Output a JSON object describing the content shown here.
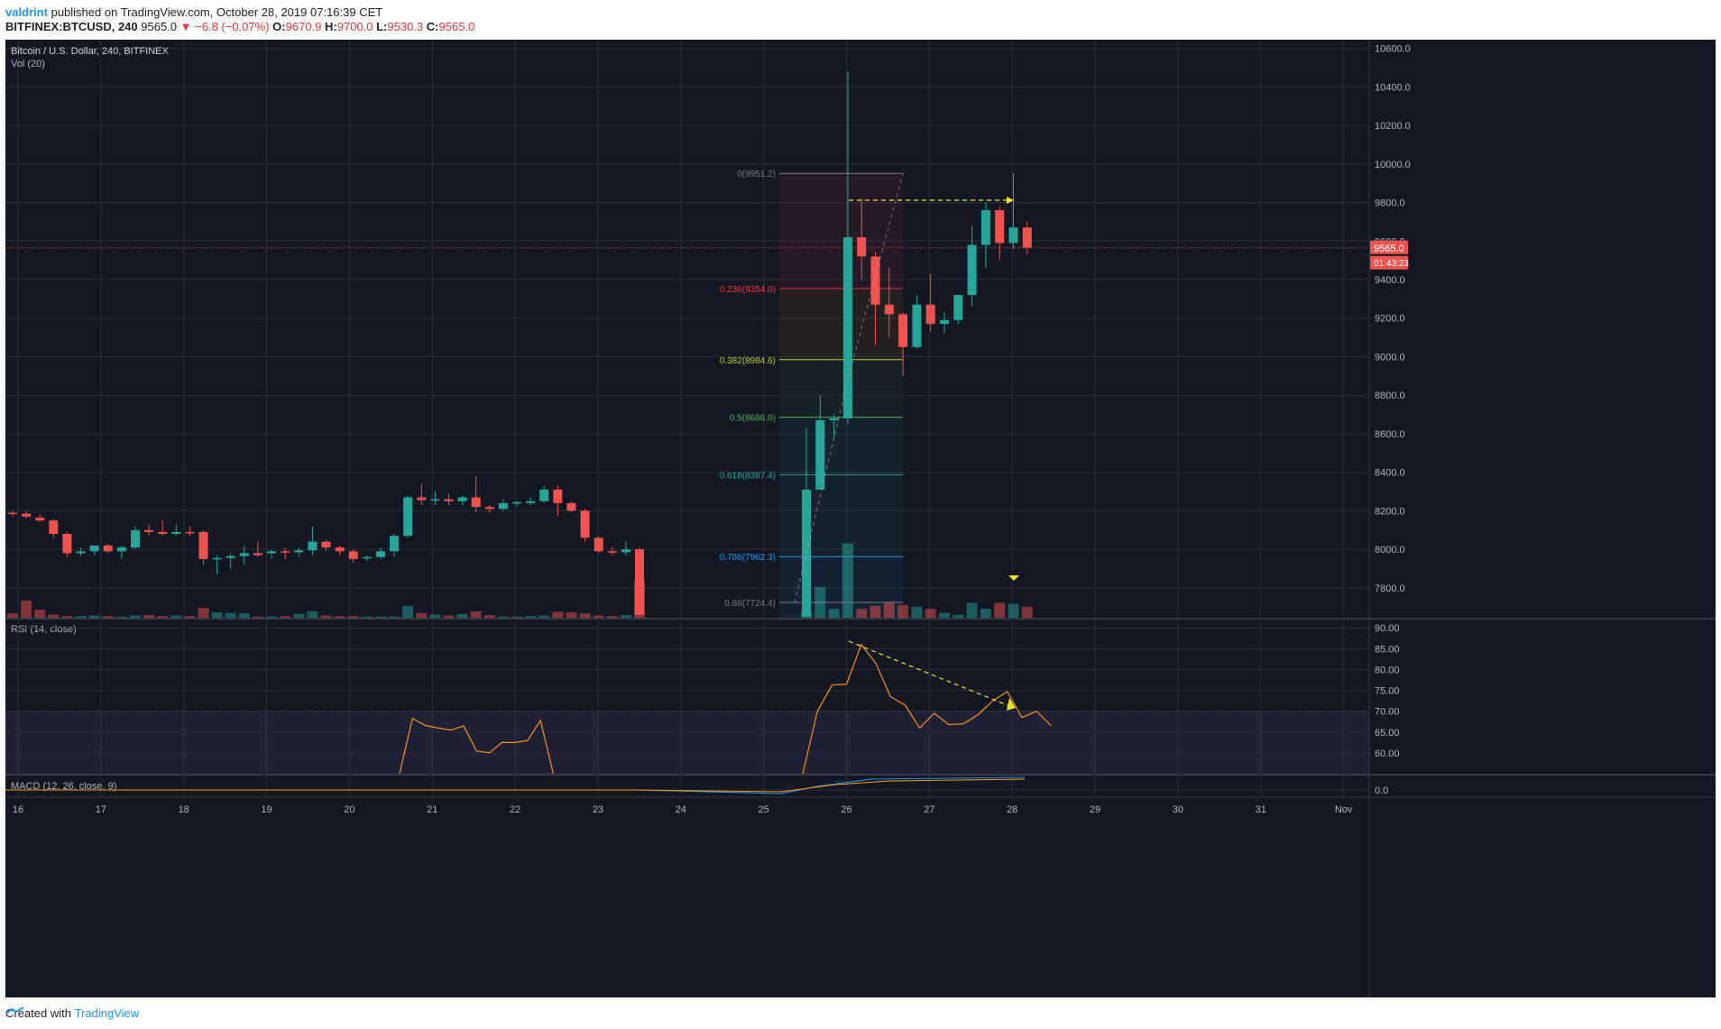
{
  "header": {
    "author": "valdrint",
    "published_text": "published on TradingView.com, October 28, 2019 07:16:39 CET",
    "symbol_line": "BITFINEX:BTCUSD, 240",
    "last": "9565.0",
    "change": "▼ −6.8 (−0.07%)",
    "o_label": "O:",
    "o_value": "9670.9",
    "h_label": "H:",
    "h_value": "9700.0",
    "l_label": "L:",
    "l_value": "9530.3",
    "c_label": "C:",
    "c_value": "9565.0"
  },
  "legend": {
    "main": "Bitcoin / U.S. Dollar, 240, BITFINEX",
    "vol": "Vol (20)",
    "rsi": "RSI (14, close)",
    "macd": "MACD (12, 26, close, 9)"
  },
  "price_badge": "9565.0",
  "countdown_badge": "01:43:23",
  "footer": {
    "created_with": "Created with",
    "brand": "TradingView"
  },
  "colors": {
    "background": "#131722",
    "up": "#26a69a",
    "down": "#ef5350",
    "rsi": "#f7931a",
    "macd_line": "#2196f3",
    "signal_line": "#ff9800",
    "trend_arrow": "#f0e130"
  },
  "chart_data": {
    "type": "candlestick",
    "title": "Bitcoin / U.S. Dollar, 240, BITFINEX",
    "x_ticks": [
      "16",
      "17",
      "18",
      "19",
      "20",
      "21",
      "22",
      "23",
      "24",
      "25",
      "26",
      "27",
      "28",
      "29",
      "30",
      "31",
      "Nov"
    ],
    "y_ticks": [
      "7800.0",
      "8000.0",
      "8200.0",
      "8400.0",
      "8600.0",
      "8800.0",
      "9000.0",
      "9200.0",
      "9400.0",
      "9600.0",
      "9800.0",
      "10000.0",
      "10200.0",
      "10400.0",
      "10600.0"
    ],
    "ylim": [
      7645,
      10645
    ],
    "fibonacci": [
      {
        "label": "0(9951.2)",
        "value": 9951.2,
        "color": "#787b86"
      },
      {
        "label": "0.236(9354.0)",
        "value": 9354.0,
        "color": "#f23645"
      },
      {
        "label": "0.382(8984.6)",
        "value": 8984.6,
        "color": "#c0ca33"
      },
      {
        "label": "0.5(8686.0)",
        "value": 8686.0,
        "color": "#4caf50"
      },
      {
        "label": "0.618(8387.4)",
        "value": 8387.4,
        "color": "#26a69a"
      },
      {
        "label": "0.786(7962.3)",
        "value": 7962.3,
        "color": "#2196f3"
      },
      {
        "label": "0.88(7724.4)",
        "value": 7724.4,
        "color": "#787b86"
      }
    ],
    "candles": [
      [
        8190,
        8200,
        8170,
        8185
      ],
      [
        8185,
        8200,
        8160,
        8170
      ],
      [
        8165,
        8180,
        8140,
        8150
      ],
      [
        8150,
        8160,
        8060,
        8080
      ],
      [
        8080,
        8090,
        7960,
        7980
      ],
      [
        7980,
        8010,
        7965,
        7990
      ],
      [
        7990,
        8020,
        7970,
        8020
      ],
      [
        8020,
        8030,
        7980,
        7990
      ],
      [
        7990,
        8020,
        7950,
        8010
      ],
      [
        8010,
        8120,
        8000,
        8100
      ],
      [
        8100,
        8130,
        8070,
        8090
      ],
      [
        8090,
        8150,
        8070,
        8080
      ],
      [
        8080,
        8130,
        8070,
        8090
      ],
      [
        8090,
        8120,
        8070,
        8085
      ],
      [
        8090,
        8100,
        7920,
        7950
      ],
      [
        7950,
        7970,
        7870,
        7955
      ],
      [
        7955,
        7980,
        7900,
        7965
      ],
      [
        7965,
        8020,
        7920,
        7980
      ],
      [
        7980,
        8040,
        7960,
        7970
      ],
      [
        7980,
        8000,
        7950,
        7990
      ],
      [
        7990,
        8010,
        7950,
        7985
      ],
      [
        7985,
        8010,
        7960,
        7995
      ],
      [
        7995,
        8120,
        7970,
        8040
      ],
      [
        8040,
        8050,
        7990,
        8010
      ],
      [
        8010,
        8020,
        7970,
        7990
      ],
      [
        7990,
        8000,
        7930,
        7950
      ],
      [
        7955,
        7970,
        7940,
        7960
      ],
      [
        7960,
        8010,
        7950,
        7990
      ],
      [
        7990,
        8080,
        7960,
        8070
      ],
      [
        8070,
        8280,
        8060,
        8270
      ],
      [
        8270,
        8340,
        8230,
        8255
      ],
      [
        8255,
        8300,
        8230,
        8260
      ],
      [
        8260,
        8290,
        8230,
        8250
      ],
      [
        8250,
        8280,
        8230,
        8270
      ],
      [
        8270,
        8380,
        8190,
        8220
      ],
      [
        8220,
        8230,
        8190,
        8210
      ],
      [
        8210,
        8260,
        8200,
        8240
      ],
      [
        8240,
        8250,
        8220,
        8245
      ],
      [
        8240,
        8270,
        8230,
        8250
      ],
      [
        8250,
        8330,
        8240,
        8310
      ],
      [
        8310,
        8330,
        8170,
        8240
      ],
      [
        8240,
        8250,
        8190,
        8200
      ],
      [
        8200,
        8210,
        8040,
        8060
      ],
      [
        8060,
        8070,
        7980,
        7990
      ],
      [
        7990,
        8010,
        7970,
        7985
      ],
      [
        7985,
        8040,
        7970,
        8000
      ],
      [
        8000,
        8010,
        7650,
        7660
      ],
      [
        7650,
        8630,
        7650,
        8310
      ],
      [
        8310,
        8800,
        8310,
        8670
      ],
      [
        8670,
        8700,
        8580,
        8680
      ],
      [
        8680,
        10480,
        8650,
        9620
      ],
      [
        9620,
        9820,
        9400,
        9520
      ],
      [
        9520,
        9540,
        9060,
        9270
      ],
      [
        9270,
        9460,
        9100,
        9220
      ],
      [
        9220,
        9230,
        8900,
        9050
      ],
      [
        9050,
        9320,
        9040,
        9270
      ],
      [
        9270,
        9430,
        9130,
        9170
      ],
      [
        9170,
        9230,
        9120,
        9190
      ],
      [
        9190,
        9320,
        9170,
        9320
      ],
      [
        9320,
        9680,
        9260,
        9580
      ],
      [
        9580,
        9800,
        9460,
        9760
      ],
      [
        9760,
        9780,
        9500,
        9590
      ],
      [
        9590,
        9950,
        9560,
        9670
      ],
      [
        9670,
        9700,
        9530,
        9565
      ]
    ],
    "volume": [
      8,
      32,
      15,
      6,
      3,
      3,
      4,
      3,
      2,
      4,
      5,
      3,
      4,
      3,
      18,
      10,
      9,
      8,
      2,
      2,
      3,
      7,
      12,
      4,
      3,
      3,
      2,
      2,
      2,
      22,
      9,
      6,
      4,
      7,
      12,
      5,
      2,
      2,
      3,
      4,
      11,
      10,
      8,
      4,
      3,
      5,
      70,
      8,
      28,
      8,
      18,
      8,
      12,
      14,
      10,
      6,
      5,
      4,
      8,
      7,
      4,
      10,
      7,
      5,
      3,
      18,
      10,
      14,
      10,
      6
    ],
    "volume_drawn_in_fib_range": [
      12,
      62,
      18,
      150,
      18,
      24,
      30,
      26,
      22,
      18,
      10,
      6,
      30,
      18,
      30,
      28,
      22,
      24
    ],
    "rsi": {
      "range": [
        55,
        92
      ],
      "overbought": 70,
      "values": [
        null,
        null,
        null,
        null,
        null,
        null,
        null,
        null,
        null,
        null,
        null,
        null,
        null,
        null,
        null,
        null,
        null,
        null,
        null,
        null,
        null,
        null,
        null,
        null,
        null,
        null,
        null,
        55,
        68.3,
        66.6,
        66.0,
        65.5,
        66.5,
        60.5,
        60.0,
        62.5,
        62.5,
        63.0,
        67.8,
        55,
        null,
        null,
        null,
        null,
        null,
        null,
        null,
        55,
        70.0,
        76.3,
        76.5,
        86.0,
        81.5,
        73.5,
        71.5,
        66.0,
        69.5,
        66.8,
        67.0,
        69.2,
        72.5,
        74.7,
        68.5,
        70.0,
        66.5
      ]
    },
    "rsi_ticks": [
      "60.00",
      "65.00",
      "70.00",
      "75.00",
      "80.00",
      "85.00",
      "90.00"
    ],
    "macd_ticks": [
      "0.0"
    ]
  }
}
